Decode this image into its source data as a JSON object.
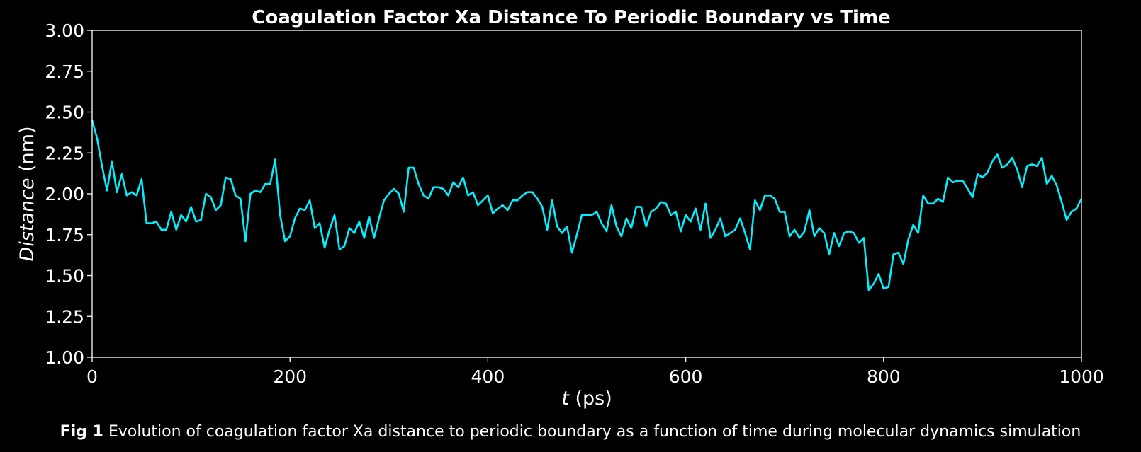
{
  "chart_data": {
    "type": "line",
    "title": "Coagulation Factor Xa Distance To Periodic Boundary vs Time",
    "xlabel_var": "t",
    "xlabel_unit": "(ps)",
    "ylabel_var": "Distance",
    "ylabel_unit": "(nm)",
    "xlim": [
      0,
      1000
    ],
    "ylim": [
      1.0,
      3.0
    ],
    "xticks": [
      "0",
      "200",
      "400",
      "600",
      "800",
      "1000"
    ],
    "yticks": [
      "1.00",
      "1.25",
      "1.50",
      "1.75",
      "2.00",
      "2.25",
      "2.50",
      "2.75",
      "3.00"
    ],
    "grid": false,
    "line_color": "#00f0ff",
    "background": "#000000",
    "series": [
      {
        "x": [
          0,
          5,
          10,
          15,
          20,
          25,
          30,
          35,
          40,
          45,
          50,
          55,
          60,
          65,
          70,
          75,
          80,
          85,
          90,
          95,
          100,
          105,
          110,
          115,
          120,
          125,
          130,
          135,
          140,
          145,
          150,
          155,
          160,
          165,
          170,
          175,
          180,
          185,
          190,
          195,
          200,
          205,
          210,
          215,
          220,
          225,
          230,
          235,
          240,
          245,
          250,
          255,
          260,
          265,
          270,
          275,
          280,
          285,
          290,
          295,
          300,
          305,
          310,
          315,
          320,
          325,
          330,
          335,
          340,
          345,
          350,
          355,
          360,
          365,
          370,
          375,
          380,
          385,
          390,
          395,
          400,
          405,
          410,
          415,
          420,
          425,
          430,
          435,
          440,
          445,
          450,
          455,
          460,
          465,
          470,
          475,
          480,
          485,
          490,
          495,
          500,
          505,
          510,
          515,
          520,
          525,
          530,
          535,
          540,
          545,
          550,
          555,
          560,
          565,
          570,
          575,
          580,
          585,
          590,
          595,
          600,
          605,
          610,
          615,
          620,
          625,
          630,
          635,
          640,
          645,
          650,
          655,
          660,
          665,
          670,
          675,
          680,
          685,
          690,
          695,
          700,
          705,
          710,
          715,
          720,
          725,
          730,
          735,
          740,
          745,
          750,
          755,
          760,
          765,
          770,
          775,
          780,
          785,
          790,
          795,
          800,
          805,
          810,
          815,
          820,
          825,
          830,
          835,
          840,
          845,
          850,
          855,
          860,
          865,
          870,
          875,
          880,
          885,
          890,
          895,
          900,
          905,
          910,
          915,
          920,
          925,
          930,
          935,
          940,
          945,
          950,
          955,
          960,
          965,
          970,
          975,
          980,
          985,
          990,
          995,
          1000
        ],
        "y": [
          2.45,
          2.34,
          2.17,
          2.02,
          2.2,
          2.01,
          2.12,
          1.99,
          2.01,
          1.99,
          2.09,
          1.82,
          1.82,
          1.83,
          1.78,
          1.78,
          1.89,
          1.78,
          1.87,
          1.83,
          1.92,
          1.83,
          1.84,
          2.0,
          1.98,
          1.9,
          1.93,
          2.1,
          2.09,
          1.99,
          1.97,
          1.71,
          2.0,
          2.02,
          2.01,
          2.06,
          2.06,
          2.21,
          1.87,
          1.71,
          1.74,
          1.85,
          1.91,
          1.9,
          1.96,
          1.79,
          1.82,
          1.67,
          1.78,
          1.87,
          1.66,
          1.68,
          1.79,
          1.76,
          1.83,
          1.73,
          1.86,
          1.73,
          1.85,
          1.96,
          2.0,
          2.03,
          2.0,
          1.89,
          2.16,
          2.16,
          2.06,
          1.99,
          1.97,
          2.04,
          2.04,
          2.03,
          1.99,
          2.07,
          2.04,
          2.1,
          1.99,
          2.01,
          1.93,
          1.96,
          1.99,
          1.88,
          1.91,
          1.93,
          1.9,
          1.96,
          1.96,
          1.99,
          2.01,
          2.01,
          1.97,
          1.92,
          1.78,
          1.96,
          1.8,
          1.76,
          1.8,
          1.64,
          1.75,
          1.87,
          1.87,
          1.87,
          1.89,
          1.82,
          1.77,
          1.93,
          1.8,
          1.74,
          1.85,
          1.79,
          1.92,
          1.92,
          1.8,
          1.89,
          1.91,
          1.95,
          1.94,
          1.87,
          1.89,
          1.77,
          1.87,
          1.83,
          1.91,
          1.78,
          1.94,
          1.73,
          1.78,
          1.85,
          1.74,
          1.76,
          1.78,
          1.85,
          1.76,
          1.66,
          1.96,
          1.9,
          1.99,
          1.99,
          1.97,
          1.89,
          1.89,
          1.74,
          1.78,
          1.73,
          1.77,
          1.9,
          1.74,
          1.79,
          1.76,
          1.63,
          1.76,
          1.68,
          1.76,
          1.77,
          1.76,
          1.7,
          1.73,
          1.41,
          1.45,
          1.51,
          1.42,
          1.43,
          1.63,
          1.64,
          1.57,
          1.72,
          1.81,
          1.76,
          1.99,
          1.94,
          1.94,
          1.97,
          1.95,
          2.1,
          2.07,
          2.08,
          2.08,
          2.03,
          1.98,
          2.12,
          2.1,
          2.13,
          2.2,
          2.24,
          2.16,
          2.18,
          2.22,
          2.15,
          2.04,
          2.17,
          2.18,
          2.17,
          2.22,
          2.06,
          2.11,
          2.05,
          1.95,
          1.84,
          1.89,
          1.91,
          1.97
        ]
      }
    ]
  },
  "caption": {
    "label": "Fig 1",
    "text": " Evolution of coagulation factor Xa distance to periodic boundary as a function of time during molecular dynamics simulation"
  }
}
